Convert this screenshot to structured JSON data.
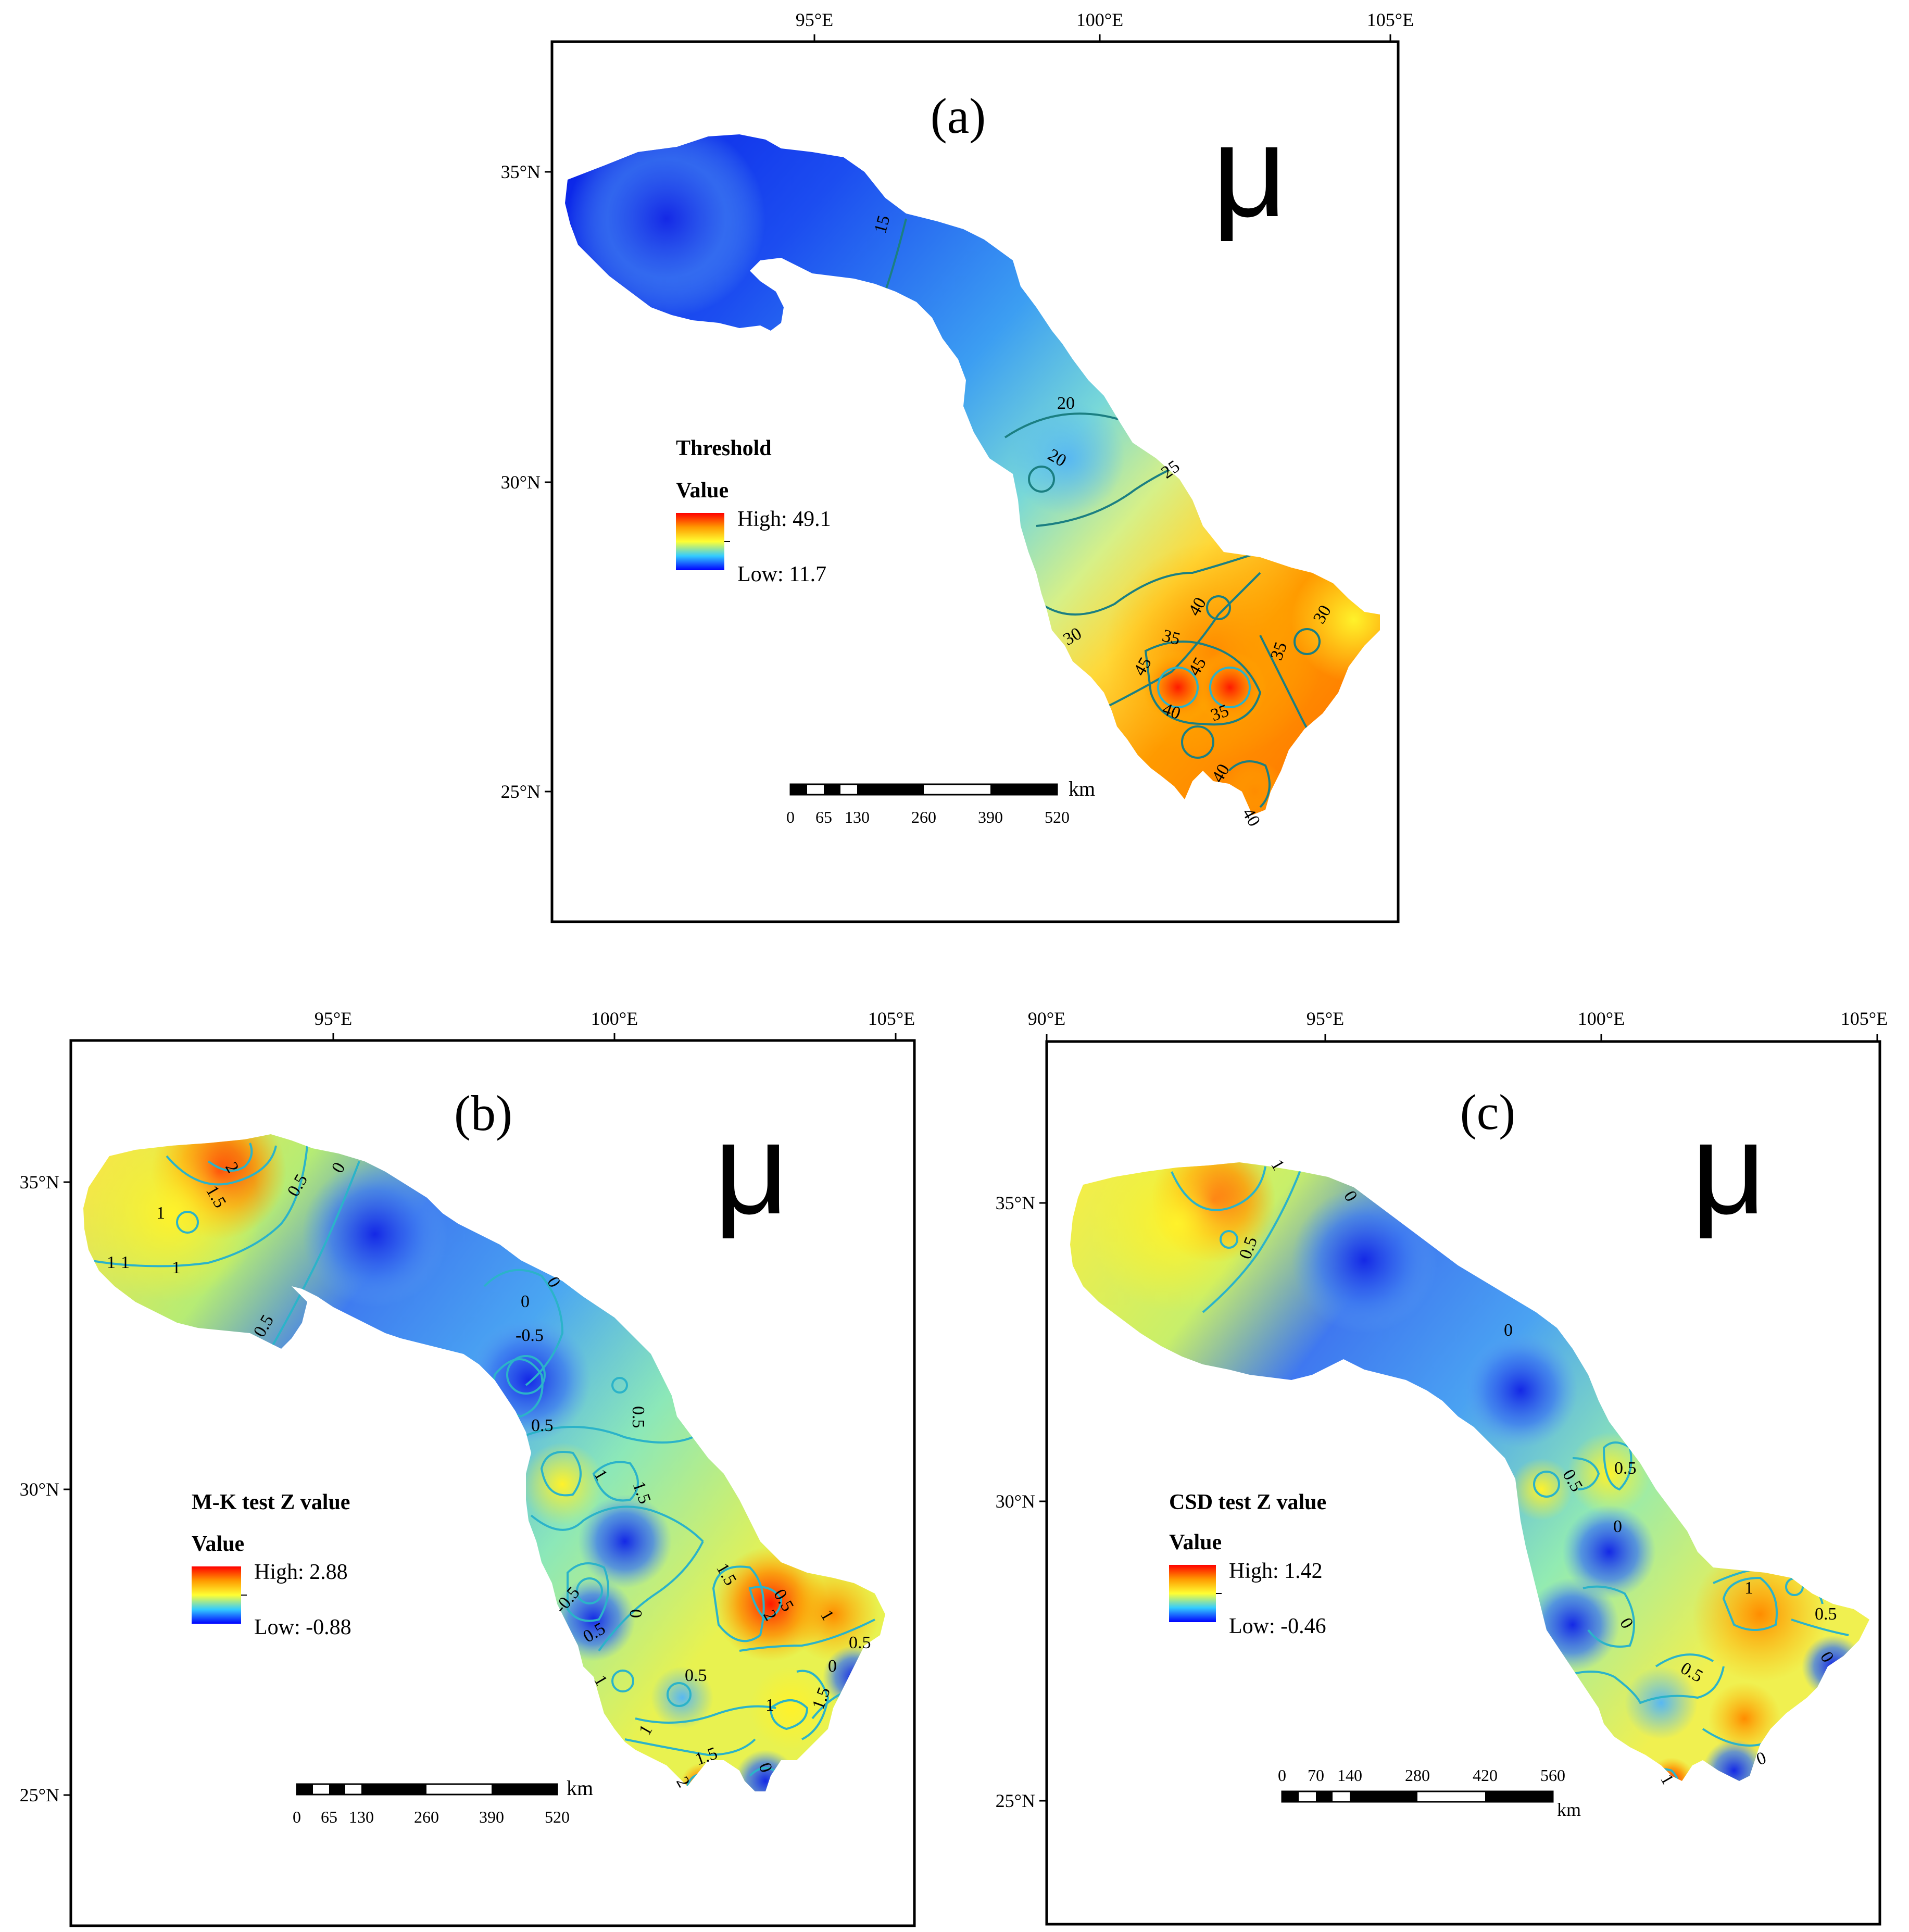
{
  "colors": {
    "ramp_high": "#ff0000",
    "ramp_mid": "#ffff33",
    "ramp_low": "#0000ff",
    "contour_teal": "#1b7f82",
    "contour_cyan": "#2bb3c9"
  },
  "north_arrow_glyph": "μ",
  "panels": [
    {
      "id": "a",
      "label": "(a)",
      "lon_ticks": [
        "95°E",
        "100°E",
        "105°E"
      ],
      "lat_ticks": [
        "35°N",
        "30°N",
        "25°N"
      ],
      "legend": {
        "title": "Threshold",
        "subtitle": "Value",
        "high": "High: 49.1",
        "low": "Low: 11.7"
      },
      "scale_bar": {
        "ticks": [
          "0",
          "65",
          "130",
          "260",
          "390",
          "520"
        ],
        "unit": "km"
      },
      "contour_labels": [
        "15",
        "20",
        "20",
        "25",
        "30",
        "30",
        "35",
        "35",
        "35",
        "40",
        "40",
        "40",
        "40",
        "45",
        "45"
      ]
    },
    {
      "id": "b",
      "label": "(b)",
      "lon_ticks": [
        "95°E",
        "100°E",
        "105°E"
      ],
      "lat_ticks": [
        "35°N",
        "30°N",
        "25°N"
      ],
      "legend": {
        "title": "M-K test Z value",
        "subtitle": "Value",
        "high": "High: 2.88",
        "low": "Low: -0.88"
      },
      "scale_bar": {
        "ticks": [
          "0",
          "65",
          "130",
          "260",
          "390",
          "520"
        ],
        "unit": "km"
      },
      "contour_labels": [
        "1.5",
        "2",
        "1",
        "1",
        "1",
        "1",
        "0.5",
        "0.5",
        "0",
        "0",
        "0",
        "-0.5",
        "0.5",
        "0.5",
        "1",
        "1.5",
        "-0.5",
        "0.5",
        "0",
        "1.5",
        "2",
        "0.5",
        "1",
        "0.5",
        "0",
        "1",
        "1.5",
        "0.5",
        "1",
        "1",
        "1.5",
        "2",
        "0"
      ]
    },
    {
      "id": "c",
      "label": "(c)",
      "lon_ticks": [
        "90°E",
        "95°E",
        "100°E",
        "105°E"
      ],
      "lat_ticks": [
        "35°N",
        "30°N",
        "25°N"
      ],
      "legend": {
        "title": "CSD test Z value",
        "subtitle": "Value",
        "high": "High: 1.42",
        "low": "Low: -0.46"
      },
      "scale_bar": {
        "ticks": [
          "0",
          "70",
          "140",
          "280",
          "420",
          "560"
        ],
        "unit": "km"
      },
      "contour_labels": [
        "1",
        "0.5",
        "0",
        "0",
        "0.5",
        "0.5",
        "0",
        "0",
        "1",
        "0.5",
        "0.5",
        "0",
        "1",
        "0"
      ]
    }
  ]
}
